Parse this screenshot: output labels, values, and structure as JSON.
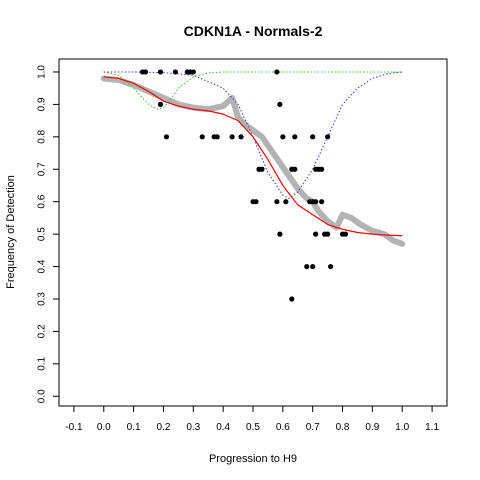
{
  "chart_data": {
    "type": "scatter",
    "title": "CDKN1A - Normals-2",
    "xlabel": "Progression to H9",
    "ylabel": "Frequency of Detection",
    "xlim": [
      -0.15,
      1.15
    ],
    "ylim": [
      -0.03,
      1.04
    ],
    "x_ticks": [
      -0.1,
      0.0,
      0.1,
      0.2,
      0.3,
      0.4,
      0.5,
      0.6,
      0.7,
      0.8,
      0.9,
      1.0,
      1.1
    ],
    "x_tick_labels": [
      "-0.1",
      "0.0",
      "0.1",
      "0.2",
      "0.3",
      "0.4",
      "0.5",
      "0.6",
      "0.7",
      "0.8",
      "0.9",
      "1.0",
      "1.1"
    ],
    "y_ticks": [
      0.0,
      0.1,
      0.2,
      0.3,
      0.4,
      0.5,
      0.6,
      0.7,
      0.8,
      0.9,
      1.0
    ],
    "y_tick_labels": [
      "0.0",
      "0.1",
      "0.2",
      "0.3",
      "0.4",
      "0.5",
      "0.6",
      "0.7",
      "0.8",
      "0.9",
      "1.0"
    ],
    "grid": false,
    "colors": {
      "points": "#000000",
      "smooth": "#b3b3b3",
      "fit": "#ff0000",
      "green_dotted": "#22cc22",
      "blue_dotted": "#3333cc"
    },
    "points": [
      [
        0.13,
        1.0
      ],
      [
        0.14,
        1.0
      ],
      [
        0.19,
        1.0
      ],
      [
        0.24,
        1.0
      ],
      [
        0.28,
        1.0
      ],
      [
        0.29,
        1.0
      ],
      [
        0.3,
        1.0
      ],
      [
        0.58,
        1.0
      ],
      [
        0.19,
        0.9
      ],
      [
        0.59,
        0.9
      ],
      [
        0.21,
        0.8
      ],
      [
        0.33,
        0.8
      ],
      [
        0.37,
        0.8
      ],
      [
        0.38,
        0.8
      ],
      [
        0.43,
        0.8
      ],
      [
        0.46,
        0.8
      ],
      [
        0.6,
        0.8
      ],
      [
        0.64,
        0.8
      ],
      [
        0.7,
        0.8
      ],
      [
        0.75,
        0.8
      ],
      [
        0.52,
        0.7
      ],
      [
        0.53,
        0.7
      ],
      [
        0.63,
        0.7
      ],
      [
        0.64,
        0.7
      ],
      [
        0.71,
        0.7
      ],
      [
        0.72,
        0.7
      ],
      [
        0.73,
        0.7
      ],
      [
        0.5,
        0.6
      ],
      [
        0.51,
        0.6
      ],
      [
        0.58,
        0.6
      ],
      [
        0.61,
        0.6
      ],
      [
        0.69,
        0.6
      ],
      [
        0.7,
        0.6
      ],
      [
        0.71,
        0.6
      ],
      [
        0.73,
        0.6
      ],
      [
        0.59,
        0.5
      ],
      [
        0.71,
        0.5
      ],
      [
        0.74,
        0.5
      ],
      [
        0.75,
        0.5
      ],
      [
        0.8,
        0.5
      ],
      [
        0.81,
        0.5
      ],
      [
        0.68,
        0.4
      ],
      [
        0.7,
        0.4
      ],
      [
        0.76,
        0.4
      ],
      [
        0.63,
        0.3
      ]
    ],
    "smooth_curve": {
      "x": [
        0.0,
        0.05,
        0.1,
        0.15,
        0.2,
        0.25,
        0.3,
        0.35,
        0.4,
        0.43,
        0.45,
        0.47,
        0.5,
        0.53,
        0.56,
        0.59,
        0.62,
        0.65,
        0.68,
        0.7,
        0.72,
        0.75,
        0.78,
        0.8,
        0.83,
        0.86,
        0.9,
        0.94,
        0.97,
        1.0
      ],
      "y": [
        0.98,
        0.975,
        0.96,
        0.94,
        0.92,
        0.9,
        0.89,
        0.885,
        0.895,
        0.92,
        0.86,
        0.84,
        0.82,
        0.8,
        0.76,
        0.72,
        0.68,
        0.64,
        0.61,
        0.6,
        0.57,
        0.54,
        0.52,
        0.56,
        0.55,
        0.53,
        0.51,
        0.5,
        0.48,
        0.47
      ]
    },
    "fit_curve": {
      "x": [
        0.0,
        0.05,
        0.1,
        0.15,
        0.2,
        0.25,
        0.3,
        0.35,
        0.4,
        0.45,
        0.5,
        0.55,
        0.6,
        0.65,
        0.7,
        0.75,
        0.8,
        0.85,
        0.9,
        0.95,
        1.0
      ],
      "y": [
        0.985,
        0.98,
        0.965,
        0.94,
        0.91,
        0.895,
        0.885,
        0.88,
        0.87,
        0.85,
        0.8,
        0.73,
        0.65,
        0.59,
        0.56,
        0.53,
        0.515,
        0.505,
        0.5,
        0.497,
        0.495
      ]
    },
    "green_dotted_curve": {
      "x": [
        0.0,
        0.05,
        0.1,
        0.15,
        0.18,
        0.2,
        0.22,
        0.25,
        0.3,
        0.35,
        0.4,
        0.5,
        0.6,
        0.7,
        0.8,
        0.9,
        1.0
      ],
      "y": [
        1.0,
        0.99,
        0.95,
        0.9,
        0.885,
        0.89,
        0.91,
        0.95,
        0.985,
        0.997,
        1.0,
        1.0,
        1.0,
        1.0,
        1.0,
        1.0,
        1.0
      ]
    },
    "blue_dotted_curve": {
      "x": [
        0.0,
        0.1,
        0.2,
        0.3,
        0.4,
        0.45,
        0.5,
        0.55,
        0.6,
        0.62,
        0.65,
        0.7,
        0.75,
        0.8,
        0.85,
        0.9,
        0.95,
        1.0
      ],
      "y": [
        1.0,
        1.0,
        0.998,
        0.99,
        0.95,
        0.9,
        0.8,
        0.69,
        0.62,
        0.61,
        0.63,
        0.7,
        0.8,
        0.9,
        0.95,
        0.98,
        0.995,
        1.0
      ]
    }
  }
}
